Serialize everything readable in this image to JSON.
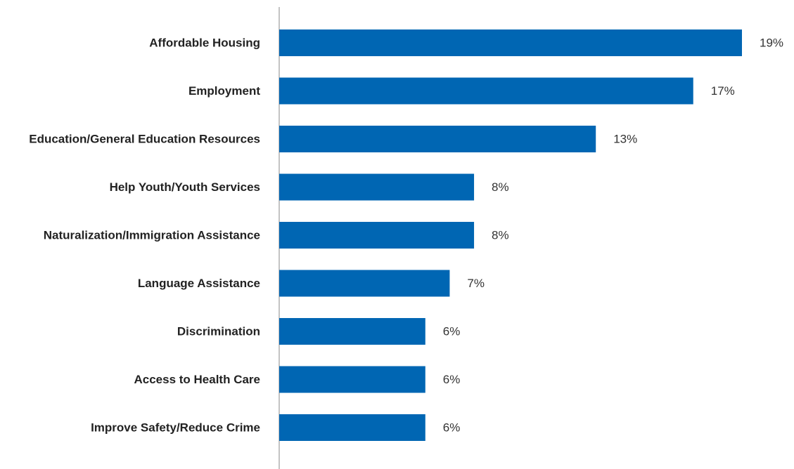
{
  "chart_data": {
    "type": "bar",
    "orientation": "horizontal",
    "categories": [
      "Affordable Housing",
      "Employment",
      "Education/General Education Resources",
      "Help Youth/Youth Services",
      "Naturalization/Immigration Assistance",
      "Language Assistance",
      "Discrimination",
      "Access to Health Care",
      "Improve Safety/Reduce Crime"
    ],
    "values": [
      19,
      17,
      13,
      8,
      8,
      7,
      6,
      6,
      6
    ],
    "value_labels": [
      "19%",
      "17%",
      "13%",
      "8%",
      "8%",
      "7%",
      "6%",
      "6%",
      "6%"
    ],
    "unit": "%",
    "xlim": [
      0,
      19
    ],
    "grid": false,
    "legend": "none",
    "bar_color": "#0066b3",
    "axis_color": "#888888"
  }
}
